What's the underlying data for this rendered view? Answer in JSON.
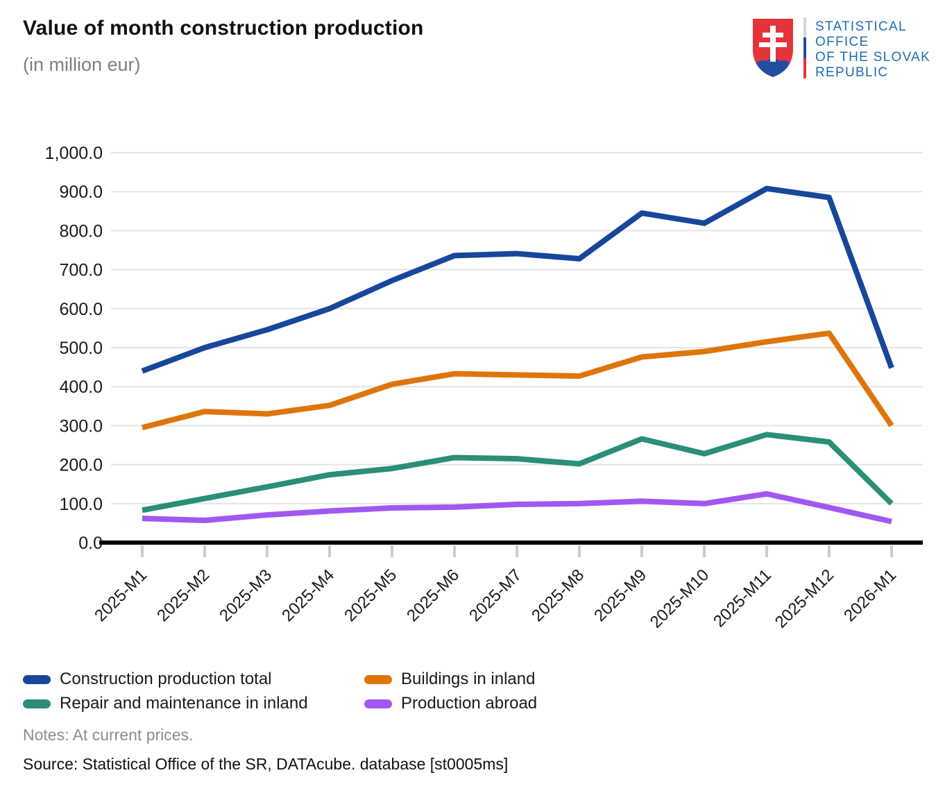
{
  "header": {
    "title": "Value of month construction production",
    "subtitle": "(in million eur)",
    "logo": {
      "coat_of_arms_icon": "slovak-coat-of-arms",
      "org_name_lines": [
        "STATISTICAL",
        "OFFICE",
        "OF THE SLOVAK",
        "REPUBLIC"
      ],
      "text_color": "#1e6cb4",
      "shield_red": "#e5333b",
      "shield_blue": "#1f4f9e"
    }
  },
  "chart_data": {
    "type": "line",
    "title": "Value of month construction production",
    "subtitle": "(in million eur)",
    "categories": [
      "2025-M1",
      "2025-M2",
      "2025-M3",
      "2025-M4",
      "2025-M5",
      "2025-M6",
      "2025-M7",
      "2025-M8",
      "2025-M9",
      "2025-M10",
      "2025-M11",
      "2025-M12",
      "2026-M1"
    ],
    "series": [
      {
        "name": "Construction production total",
        "color": "#17479b",
        "values": [
          440,
          500,
          546,
          600,
          672,
          736,
          741,
          728,
          845,
          819,
          908,
          885,
          448
        ]
      },
      {
        "name": "Buildings in inland",
        "color": "#de750b",
        "values": [
          295,
          336,
          330,
          352,
          406,
          433,
          430,
          427,
          476,
          490,
          515,
          537,
          300
        ]
      },
      {
        "name": "Repair and maintenance in inland",
        "color": "#2a8f76",
        "values": [
          83,
          113,
          143,
          174,
          190,
          218,
          215,
          202,
          266,
          228,
          277,
          258,
          100
        ]
      },
      {
        "name": "Production abroad",
        "color": "#a158f2",
        "values": [
          62,
          57,
          71,
          81,
          89,
          91,
          98,
          100,
          106,
          100,
          125,
          90,
          54
        ]
      }
    ],
    "xlabel": "",
    "ylabel": "",
    "ylim": [
      0,
      1000
    ],
    "ytick_step": 100,
    "ytick_label_format": "thousands-comma-one-decimal",
    "grid": "horizontal",
    "x_tick_label_rotation_deg": 45,
    "legend_position": "bottom-left, 2 columns",
    "grid_color": "#e4e4e4",
    "tick_color": "#cccccc",
    "axis_color": "#000000"
  },
  "footer": {
    "notes": "Notes: At current prices.",
    "source": "Source: Statistical Office of the SR, DATAcube. database [st0005ms]"
  }
}
